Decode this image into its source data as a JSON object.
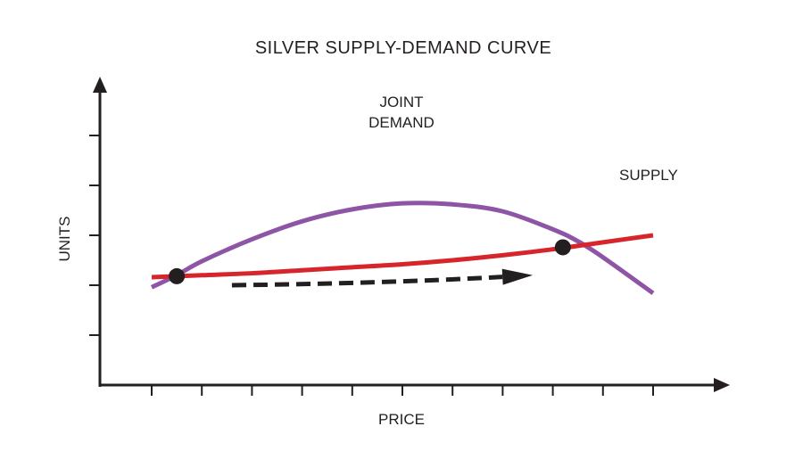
{
  "chart_data": {
    "type": "line",
    "title": "SILVER SUPPLY-DEMAND CURVE",
    "xlabel": "PRICE",
    "ylabel": "UNITS",
    "xlim": [
      0,
      10
    ],
    "ylim": [
      0,
      10
    ],
    "grid": false,
    "legend": "none",
    "series": [
      {
        "name": "JOINT\nDEMAND",
        "label_lines": [
          "JOINT",
          "DEMAND"
        ],
        "color": "#8e55a6",
        "x": [
          0,
          0.5,
          1,
          2,
          3,
          4,
          5,
          6,
          7,
          8,
          8.5,
          9,
          10
        ],
        "y": [
          2.4,
          3.0,
          3.7,
          4.8,
          5.7,
          6.3,
          6.6,
          6.55,
          6.2,
          5.3,
          4.7,
          3.9,
          2.1
        ]
      },
      {
        "name": "SUPPLY",
        "label_lines": [
          "SUPPLY"
        ],
        "color": "#d7262b",
        "x": [
          0,
          1,
          2,
          3,
          4,
          5,
          6,
          7,
          8,
          9,
          10
        ],
        "y": [
          2.9,
          3.0,
          3.1,
          3.25,
          3.4,
          3.55,
          3.75,
          4.0,
          4.3,
          4.65,
          5.0
        ]
      }
    ],
    "points": [
      {
        "x": 0.5,
        "y": 2.95
      },
      {
        "x": 8.2,
        "y": 4.4
      }
    ],
    "arrow": {
      "from": [
        1.6,
        2.5
      ],
      "to": [
        7.6,
        3.0
      ],
      "style": "dashed"
    },
    "ticks": {
      "x_count": 11,
      "y_count": 5
    }
  }
}
